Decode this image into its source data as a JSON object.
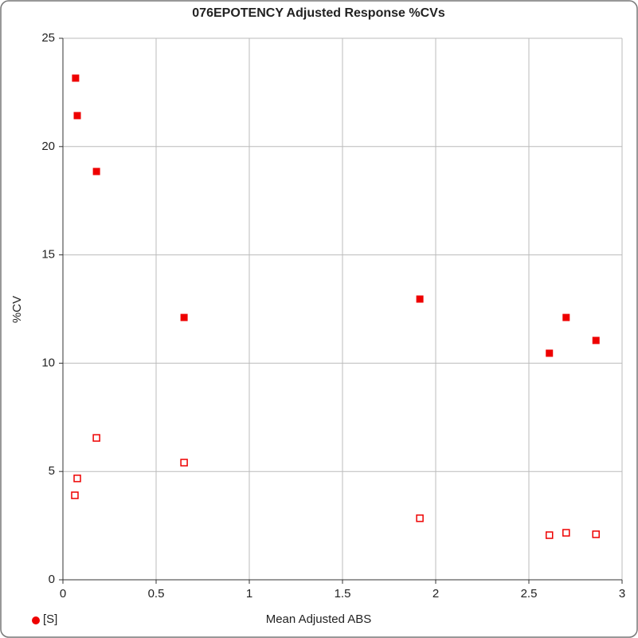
{
  "chart_data": {
    "type": "scatter",
    "title": "076EPOTENCY Adjusted Response %CVs",
    "x_label": "Mean Adjusted ABS",
    "y_label": "%CV",
    "xlim": [
      0,
      3
    ],
    "ylim": [
      0,
      25
    ],
    "xticks": [
      0,
      0.5,
      1,
      1.5,
      2,
      2.5,
      3
    ],
    "yticks": [
      0,
      5,
      10,
      15,
      20,
      25
    ],
    "grid": true,
    "legend": "lower left",
    "series": [
      {
        "name": "[S]",
        "color": "#ee0000",
        "marker": "filled-square",
        "x": [
          0.068,
          0.077,
          0.18,
          0.65,
          1.915,
          2.61,
          2.7,
          2.86
        ],
        "values": [
          23.16,
          21.43,
          18.85,
          12.11,
          12.96,
          10.46,
          12.11,
          11.05
        ]
      },
      {
        "color": "#ee0000",
        "marker": "open-square",
        "x": [
          0.064,
          0.077,
          0.18,
          0.65,
          1.915,
          2.61,
          2.7,
          2.86
        ],
        "values": [
          3.9,
          4.68,
          6.55,
          5.41,
          2.84,
          2.06,
          2.17,
          2.1
        ]
      }
    ]
  }
}
